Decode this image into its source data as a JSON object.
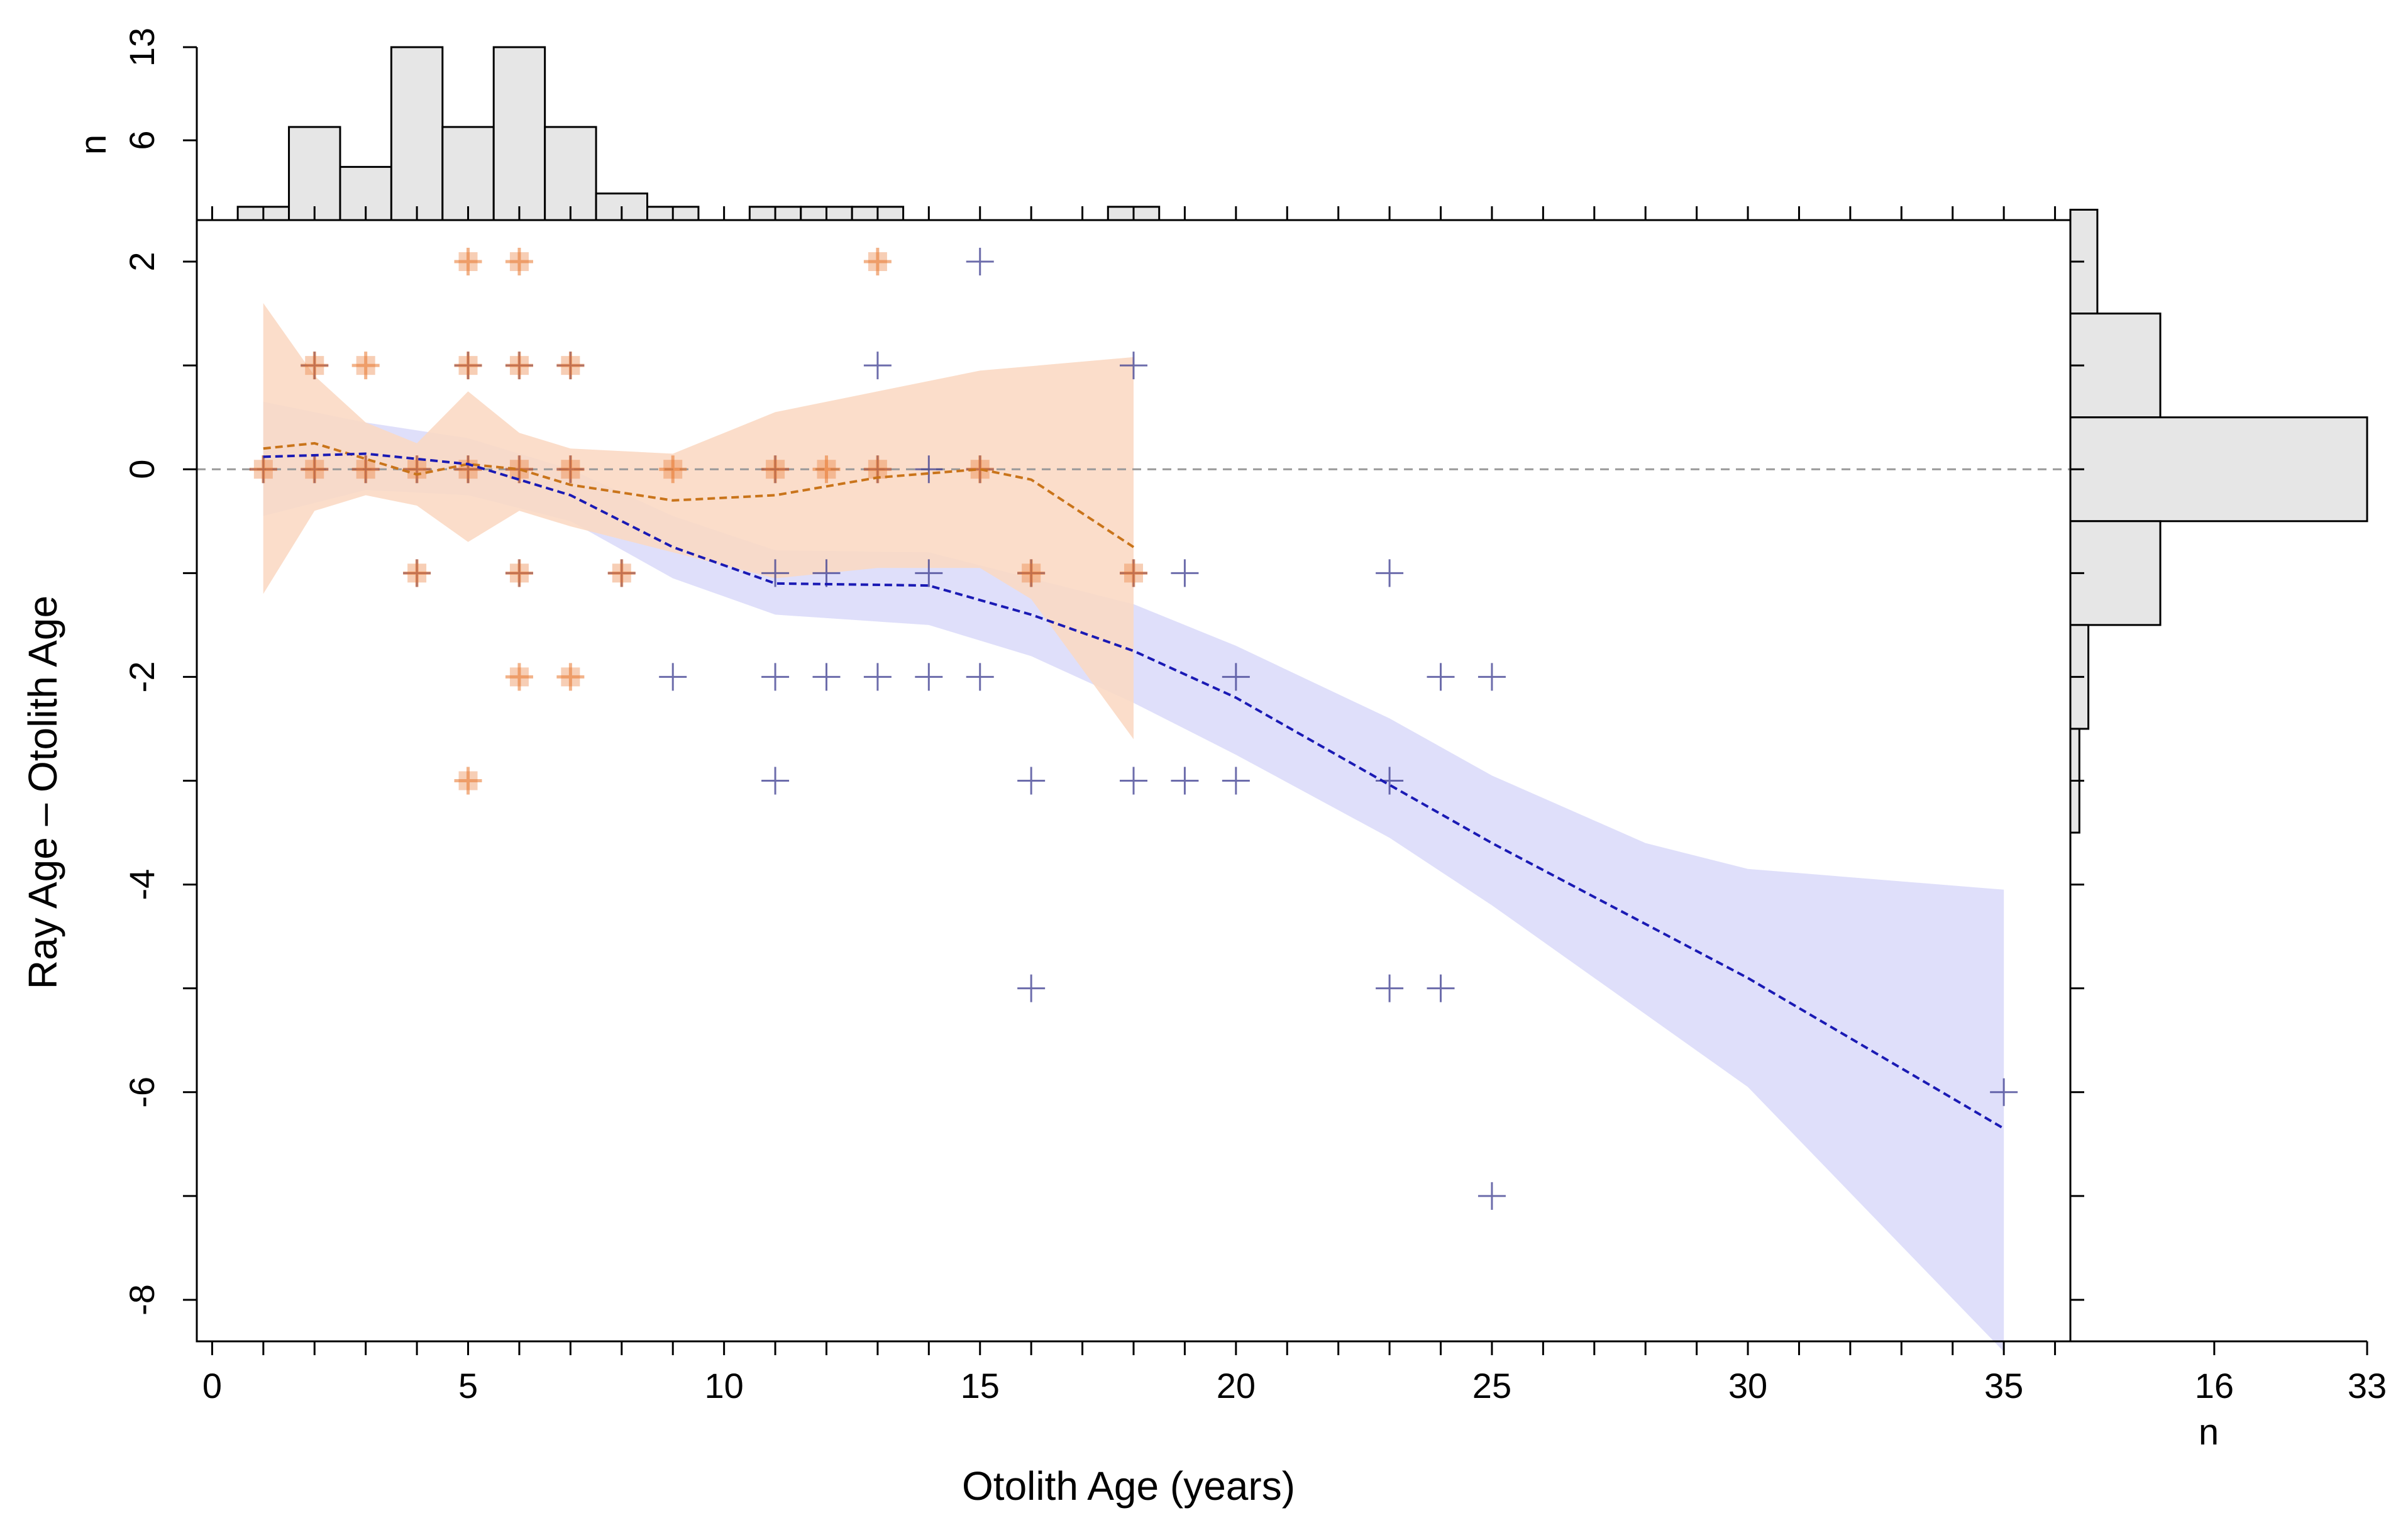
{
  "chart_data": {
    "type": "scatter",
    "xlabel": "Otolith Age (years)",
    "ylabel": "Ray Age – Otolith Age",
    "xlim": [
      -0.3,
      36.3
    ],
    "ylim": [
      -8.4,
      2.4
    ],
    "x_ticks_labeled": [
      0,
      5,
      10,
      15,
      20,
      25,
      30,
      35
    ],
    "y_ticks_labeled": [
      2,
      0,
      -2,
      -4,
      -6,
      -8
    ],
    "reference_line_y": 0,
    "colors": {
      "blue_points": "#3b3b8f",
      "blue_line": "#1a1ab4",
      "blue_band": "#c9c9f7",
      "orange_points": "#e8742a",
      "orange_line": "#c9741a",
      "orange_band": "#fde3c0",
      "pink_band": "#f7cccc",
      "hist_fill": "#e6e6e6"
    },
    "series": [
      {
        "name": "ray_blue",
        "marker": "+",
        "points": [
          [
            1,
            0
          ],
          [
            2,
            0
          ],
          [
            2,
            1
          ],
          [
            3,
            0
          ],
          [
            4,
            0
          ],
          [
            4,
            -1
          ],
          [
            5,
            0
          ],
          [
            5,
            1
          ],
          [
            6,
            0
          ],
          [
            6,
            1
          ],
          [
            6,
            -1
          ],
          [
            7,
            0
          ],
          [
            7,
            1
          ],
          [
            8,
            -1
          ],
          [
            9,
            -2
          ],
          [
            11,
            0
          ],
          [
            11,
            -1
          ],
          [
            11,
            -2
          ],
          [
            11,
            -3
          ],
          [
            12,
            -1
          ],
          [
            12,
            -2
          ],
          [
            13,
            1
          ],
          [
            13,
            0
          ],
          [
            13,
            -2
          ],
          [
            14,
            0
          ],
          [
            14,
            -1
          ],
          [
            14,
            -2
          ],
          [
            15,
            2
          ],
          [
            15,
            0
          ],
          [
            15,
            -2
          ],
          [
            16,
            -1
          ],
          [
            16,
            -3
          ],
          [
            16,
            -5
          ],
          [
            18,
            1
          ],
          [
            18,
            -1
          ],
          [
            18,
            -3
          ],
          [
            19,
            -1
          ],
          [
            19,
            -3
          ],
          [
            20,
            -2
          ],
          [
            20,
            -3
          ],
          [
            23,
            -1
          ],
          [
            23,
            -3
          ],
          [
            23,
            -5
          ],
          [
            24,
            -2
          ],
          [
            24,
            -5
          ],
          [
            25,
            -2
          ],
          [
            25,
            -7
          ],
          [
            35,
            -6
          ]
        ]
      },
      {
        "name": "ray_orange",
        "marker": "+",
        "points": [
          [
            1,
            0
          ],
          [
            2,
            1
          ],
          [
            2,
            0
          ],
          [
            3,
            1
          ],
          [
            3,
            0
          ],
          [
            4,
            0
          ],
          [
            4,
            -1
          ],
          [
            5,
            2
          ],
          [
            5,
            1
          ],
          [
            5,
            0
          ],
          [
            5,
            -3
          ],
          [
            6,
            2
          ],
          [
            6,
            1
          ],
          [
            6,
            0
          ],
          [
            6,
            -1
          ],
          [
            6,
            -2
          ],
          [
            7,
            1
          ],
          [
            7,
            0
          ],
          [
            7,
            -2
          ],
          [
            8,
            -1
          ],
          [
            9,
            0
          ],
          [
            11,
            0
          ],
          [
            12,
            0
          ],
          [
            13,
            2
          ],
          [
            13,
            0
          ],
          [
            15,
            0
          ],
          [
            16,
            -1
          ],
          [
            18,
            -1
          ]
        ]
      }
    ],
    "smooths": [
      {
        "name": "blue_smooth",
        "line": [
          [
            1,
            0.12
          ],
          [
            3,
            0.15
          ],
          [
            5,
            0.05
          ],
          [
            7,
            -0.25
          ],
          [
            9,
            -0.75
          ],
          [
            11,
            -1.1
          ],
          [
            14,
            -1.12
          ],
          [
            16,
            -1.4
          ],
          [
            18,
            -1.75
          ],
          [
            20,
            -2.2
          ],
          [
            25,
            -3.6
          ],
          [
            30,
            -4.9
          ],
          [
            35,
            -6.35
          ]
        ],
        "upper": [
          [
            1,
            0.65
          ],
          [
            3,
            0.45
          ],
          [
            5,
            0.3
          ],
          [
            7,
            0.0
          ],
          [
            9,
            -0.45
          ],
          [
            11,
            -0.78
          ],
          [
            14,
            -0.8
          ],
          [
            16,
            -1.05
          ],
          [
            18,
            -1.3
          ],
          [
            20,
            -1.7
          ],
          [
            23,
            -2.4
          ],
          [
            25,
            -2.95
          ],
          [
            28,
            -3.6
          ],
          [
            30,
            -3.85
          ],
          [
            35,
            -4.05
          ]
        ],
        "lower": [
          [
            1,
            -0.45
          ],
          [
            3,
            -0.2
          ],
          [
            5,
            -0.25
          ],
          [
            7,
            -0.5
          ],
          [
            9,
            -1.05
          ],
          [
            11,
            -1.4
          ],
          [
            14,
            -1.5
          ],
          [
            16,
            -1.8
          ],
          [
            18,
            -2.25
          ],
          [
            20,
            -2.75
          ],
          [
            23,
            -3.55
          ],
          [
            25,
            -4.2
          ],
          [
            30,
            -5.95
          ],
          [
            35,
            -8.5
          ]
        ]
      },
      {
        "name": "orange_smooth",
        "line": [
          [
            1,
            0.2
          ],
          [
            2,
            0.25
          ],
          [
            3,
            0.1
          ],
          [
            4,
            -0.05
          ],
          [
            5,
            0.05
          ],
          [
            6,
            0.0
          ],
          [
            7,
            -0.15
          ],
          [
            9,
            -0.3
          ],
          [
            11,
            -0.25
          ],
          [
            13,
            -0.08
          ],
          [
            15,
            0.0
          ],
          [
            16,
            -0.1
          ],
          [
            18,
            -0.75
          ]
        ],
        "upper": [
          [
            1,
            1.6
          ],
          [
            2,
            0.9
          ],
          [
            3,
            0.45
          ],
          [
            4,
            0.25
          ],
          [
            5,
            0.75
          ],
          [
            6,
            0.35
          ],
          [
            7,
            0.2
          ],
          [
            9,
            0.15
          ],
          [
            11,
            0.55
          ],
          [
            13,
            0.75
          ],
          [
            15,
            0.95
          ],
          [
            18,
            1.08
          ]
        ],
        "lower": [
          [
            1,
            -1.2
          ],
          [
            2,
            -0.4
          ],
          [
            3,
            -0.25
          ],
          [
            4,
            -0.35
          ],
          [
            5,
            -0.7
          ],
          [
            6,
            -0.4
          ],
          [
            7,
            -0.55
          ],
          [
            9,
            -0.8
          ],
          [
            11,
            -1.05
          ],
          [
            13,
            -0.95
          ],
          [
            15,
            -0.95
          ],
          [
            16,
            -1.25
          ],
          [
            18,
            -2.6
          ]
        ]
      }
    ],
    "top_histogram": {
      "ylabel": "n",
      "ticks": [
        6,
        13
      ],
      "ymax": 13,
      "bins": [
        [
          0.5,
          1.5,
          1
        ],
        [
          1.5,
          2.5,
          7
        ],
        [
          2.5,
          3.5,
          4
        ],
        [
          3.5,
          4.5,
          13
        ],
        [
          4.5,
          5.5,
          7
        ],
        [
          5.5,
          6.5,
          13
        ],
        [
          6.5,
          7.5,
          7
        ],
        [
          7.5,
          8.5,
          2
        ],
        [
          8.5,
          9.5,
          1
        ],
        [
          9.5,
          10.5,
          0
        ],
        [
          10.5,
          11.5,
          1
        ],
        [
          11.5,
          12.5,
          1
        ],
        [
          12.5,
          13.5,
          1
        ],
        [
          13.5,
          14.5,
          0
        ],
        [
          14.5,
          15.5,
          0
        ],
        [
          15.5,
          16.5,
          0
        ],
        [
          16.5,
          17.5,
          0
        ],
        [
          17.5,
          18.5,
          1
        ]
      ]
    },
    "right_histogram": {
      "xlabel": "n",
      "ticks": [
        16,
        33
      ],
      "xmax": 33,
      "bins": [
        [
          1.5,
          2.5,
          3
        ],
        [
          0.5,
          1.5,
          10
        ],
        [
          -0.5,
          0.5,
          33
        ],
        [
          -1.5,
          -0.5,
          10
        ],
        [
          -2.5,
          -1.5,
          2
        ],
        [
          -3.5,
          -2.5,
          1
        ],
        [
          -4.5,
          -3.5,
          0
        ]
      ]
    }
  }
}
